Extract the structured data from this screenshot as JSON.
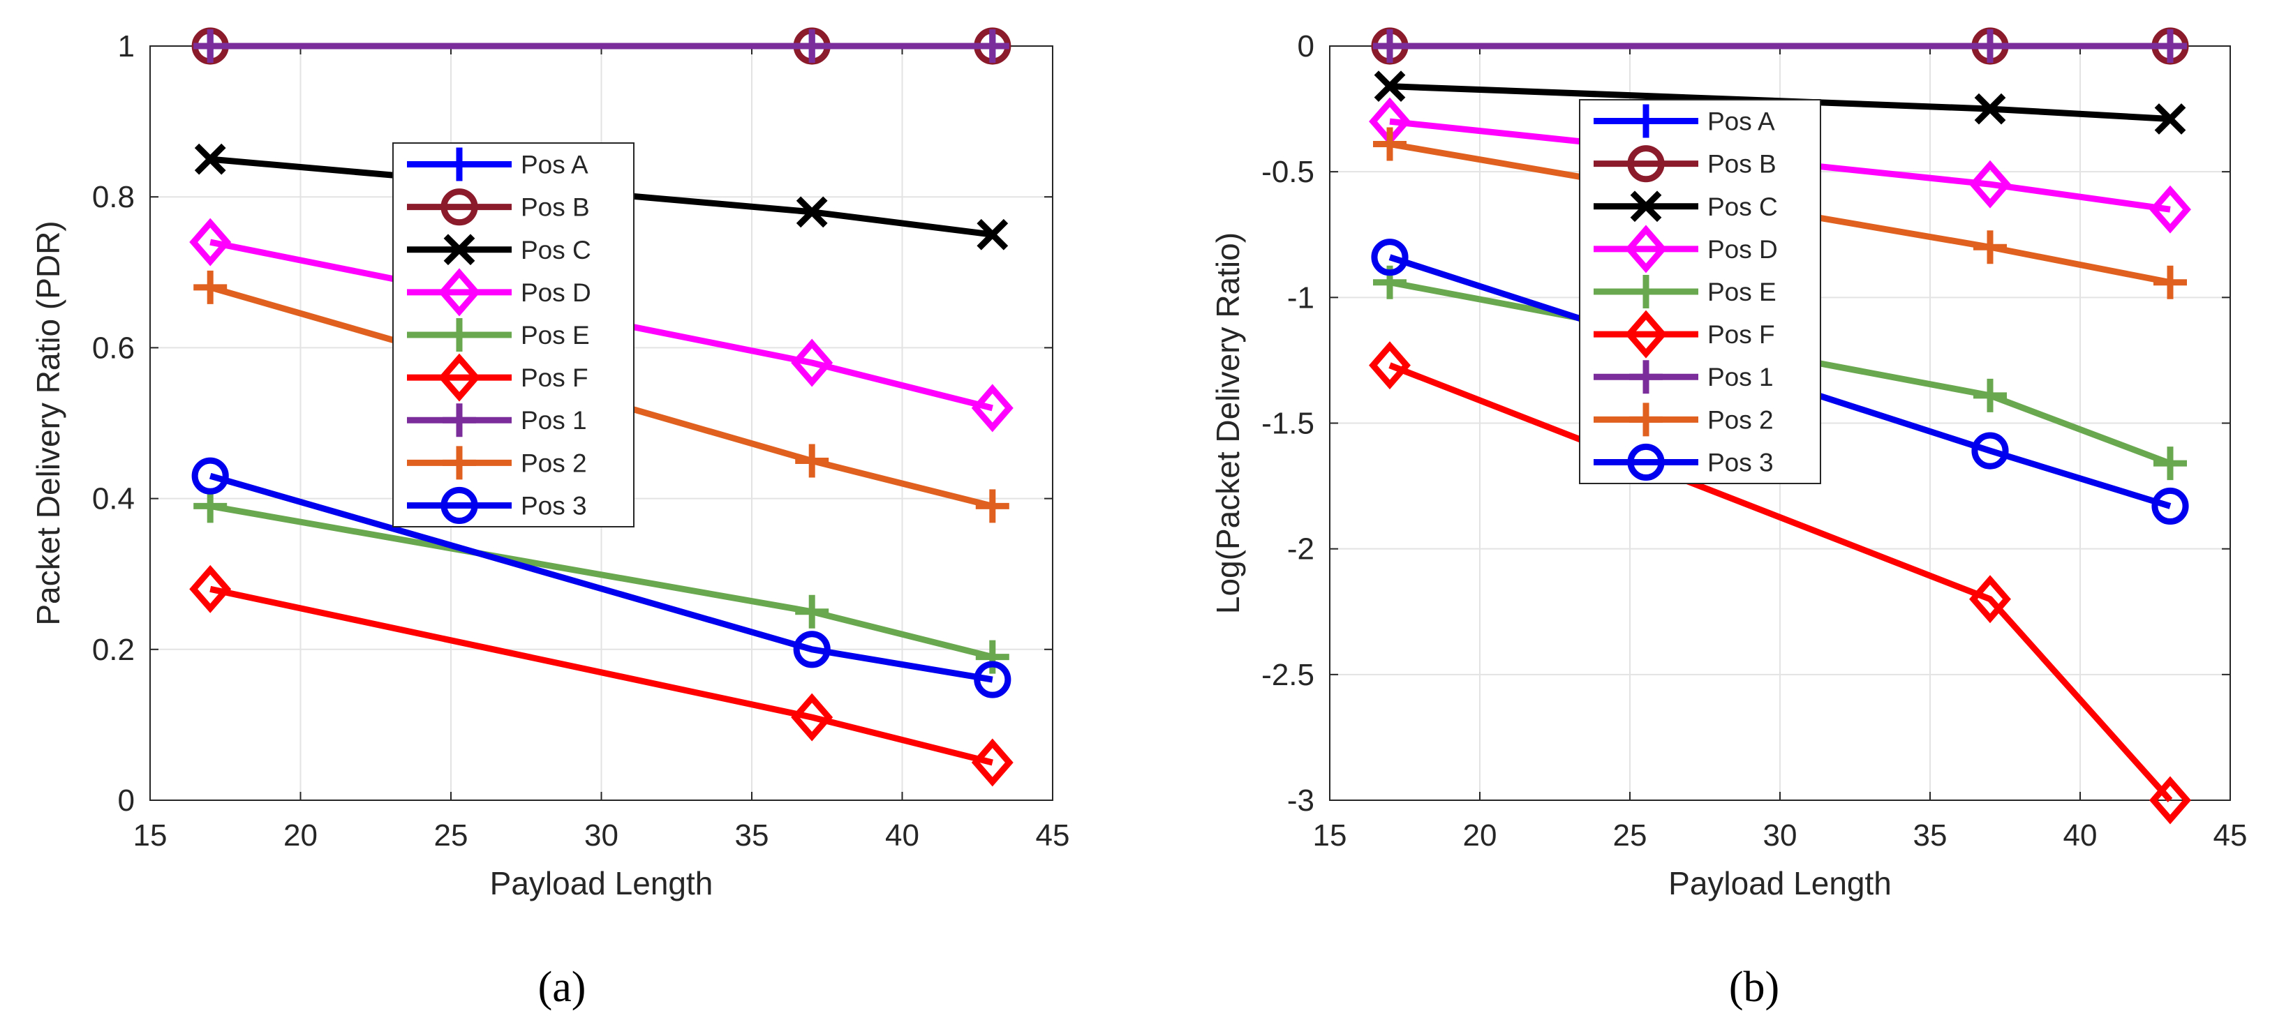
{
  "chart_data": [
    {
      "panel": "(a)",
      "type": "line",
      "title": "",
      "xlabel": "Payload Length",
      "ylabel": "Packet Delivery Ratio (PDR)",
      "xlim": [
        15,
        45
      ],
      "ylim": [
        0,
        1
      ],
      "xticks": [
        15,
        20,
        25,
        30,
        35,
        40,
        45
      ],
      "xtick_labels": [
        "15",
        "20",
        "25",
        "30",
        "35",
        "40",
        "45"
      ],
      "yticks": [
        0,
        0.2,
        0.4,
        0.6,
        0.8,
        1
      ],
      "ytick_labels": [
        "0",
        "0.2",
        "0.4",
        "0.6",
        "0.8",
        "1"
      ],
      "grid": true,
      "legend_position": "upper-center",
      "x": [
        17,
        37,
        43
      ],
      "series": [
        {
          "name": "Pos A",
          "values": [
            1,
            1,
            1
          ],
          "color": "#0000ff",
          "marker": "plus"
        },
        {
          "name": "Pos B",
          "values": [
            1,
            1,
            1
          ],
          "color": "#8b1a2b",
          "marker": "circle"
        },
        {
          "name": "Pos C",
          "values": [
            0.85,
            0.78,
            0.75
          ],
          "color": "#000000",
          "marker": "x"
        },
        {
          "name": "Pos D",
          "values": [
            0.74,
            0.58,
            0.52
          ],
          "color": "#ff00ff",
          "marker": "diamond"
        },
        {
          "name": "Pos E",
          "values": [
            0.39,
            0.25,
            0.19
          ],
          "color": "#6aa84f",
          "marker": "plus"
        },
        {
          "name": "Pos F",
          "values": [
            0.28,
            0.11,
            0.05
          ],
          "color": "#ff0000",
          "marker": "diamond"
        },
        {
          "name": "Pos 1",
          "values": [
            1,
            1,
            1
          ],
          "color": "#7b2d9c",
          "marker": "plus"
        },
        {
          "name": "Pos 2",
          "values": [
            0.68,
            0.45,
            0.39
          ],
          "color": "#e06020",
          "marker": "plus"
        },
        {
          "name": "Pos 3",
          "values": [
            0.43,
            0.2,
            0.16
          ],
          "color": "#0000ee",
          "marker": "circle"
        }
      ]
    },
    {
      "panel": "(b)",
      "type": "line",
      "title": "",
      "xlabel": "Payload Length",
      "ylabel": "Log(Packet Delivery Ratio)",
      "xlim": [
        15,
        45
      ],
      "ylim": [
        -3,
        0
      ],
      "xticks": [
        15,
        20,
        25,
        30,
        35,
        40,
        45
      ],
      "xtick_labels": [
        "15",
        "20",
        "25",
        "30",
        "35",
        "40",
        "45"
      ],
      "yticks": [
        -3,
        -2.5,
        -2,
        -1.5,
        -1,
        -0.5,
        0
      ],
      "ytick_labels": [
        "-3",
        "-2.5",
        "-2",
        "-1.5",
        "-1",
        "-0.5",
        "0"
      ],
      "grid": true,
      "legend_position": "upper-center",
      "x": [
        17,
        37,
        43
      ],
      "series": [
        {
          "name": "Pos A",
          "values": [
            0,
            0,
            0
          ],
          "color": "#0000ff",
          "marker": "plus"
        },
        {
          "name": "Pos B",
          "values": [
            0,
            0,
            0
          ],
          "color": "#8b1a2b",
          "marker": "circle"
        },
        {
          "name": "Pos C",
          "values": [
            -0.16,
            -0.25,
            -0.29
          ],
          "color": "#000000",
          "marker": "x"
        },
        {
          "name": "Pos D",
          "values": [
            -0.3,
            -0.55,
            -0.65
          ],
          "color": "#ff00ff",
          "marker": "diamond"
        },
        {
          "name": "Pos E",
          "values": [
            -0.94,
            -1.39,
            -1.66
          ],
          "color": "#6aa84f",
          "marker": "plus"
        },
        {
          "name": "Pos F",
          "values": [
            -1.27,
            -2.2,
            -3.0
          ],
          "color": "#ff0000",
          "marker": "diamond"
        },
        {
          "name": "Pos 1",
          "values": [
            0,
            0,
            0
          ],
          "color": "#7b2d9c",
          "marker": "plus"
        },
        {
          "name": "Pos 2",
          "values": [
            -0.39,
            -0.8,
            -0.94
          ],
          "color": "#e06020",
          "marker": "plus"
        },
        {
          "name": "Pos 3",
          "values": [
            -0.84,
            -1.61,
            -1.83
          ],
          "color": "#0000ee",
          "marker": "circle"
        }
      ]
    }
  ]
}
